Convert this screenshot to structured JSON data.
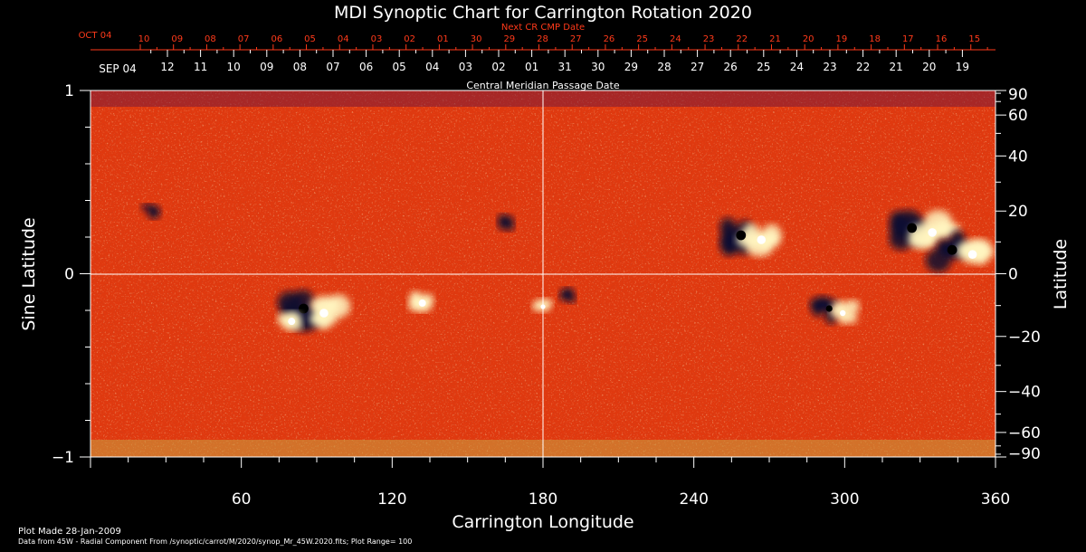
{
  "colors": {
    "background": "#000000",
    "text": "#ffffff",
    "next_cr_axis": "#ff3a1a",
    "map_base": "#e83c10",
    "positive_field": "#fff4c0",
    "negative_field": "#0a0830"
  },
  "chart_data": {
    "type": "heatmap",
    "title": "MDI Synoptic Chart for Carrington Rotation 2020",
    "xlabel": "Carrington Longitude",
    "ylabel_left": "Sine Latitude",
    "ylabel_right": "Latitude",
    "xlim": [
      0,
      360
    ],
    "ylim": [
      -1,
      1
    ],
    "x_ticks": [
      60,
      120,
      180,
      240,
      300,
      360
    ],
    "y_ticks_left": [
      -1,
      0,
      1
    ],
    "y_ticks_right": [
      90,
      60,
      40,
      20,
      0,
      -20,
      -40,
      -60,
      -90
    ],
    "y_ticks_right_labels": [
      "90",
      "60",
      "40",
      "20",
      "0",
      "−20",
      "−40",
      "−60",
      "−90"
    ],
    "center_crosshair": {
      "longitude": 180,
      "sine_latitude": 0
    },
    "top_axis_cmp": {
      "label": "Central Meridian Passage Date",
      "start_label": "SEP 04",
      "ticks": [
        "12",
        "11",
        "10",
        "09",
        "08",
        "07",
        "06",
        "05",
        "04",
        "03",
        "02",
        "01",
        "31",
        "30",
        "29",
        "28",
        "27",
        "26",
        "25",
        "24",
        "23",
        "22",
        "21",
        "20",
        "19"
      ]
    },
    "top_axis_next_cr": {
      "label": "Next CR CMP Date",
      "start_label": "OCT 04",
      "ticks": [
        "10",
        "09",
        "08",
        "07",
        "06",
        "05",
        "04",
        "03",
        "02",
        "01",
        "30",
        "29",
        "28",
        "27",
        "26",
        "25",
        "24",
        "23",
        "22",
        "21",
        "20",
        "19",
        "18",
        "17",
        "16",
        "15"
      ]
    },
    "active_regions": [
      {
        "lon": 88,
        "sinlat": -0.2,
        "polarity": "bipolar",
        "strength": "strong"
      },
      {
        "lon": 80,
        "sinlat": -0.26,
        "polarity": "positive",
        "strength": "moderate"
      },
      {
        "lon": 132,
        "sinlat": -0.16,
        "polarity": "positive",
        "strength": "moderate"
      },
      {
        "lon": 180,
        "sinlat": -0.18,
        "polarity": "positive",
        "strength": "weak"
      },
      {
        "lon": 190,
        "sinlat": -0.12,
        "polarity": "negative",
        "strength": "weak"
      },
      {
        "lon": 262,
        "sinlat": 0.2,
        "polarity": "bipolar",
        "strength": "strong"
      },
      {
        "lon": 296,
        "sinlat": -0.2,
        "polarity": "bipolar",
        "strength": "moderate"
      },
      {
        "lon": 330,
        "sinlat": 0.24,
        "polarity": "bipolar",
        "strength": "strong"
      },
      {
        "lon": 346,
        "sinlat": 0.12,
        "polarity": "bipolar",
        "strength": "strong"
      },
      {
        "lon": 24,
        "sinlat": 0.34,
        "polarity": "negative",
        "strength": "weak"
      },
      {
        "lon": 165,
        "sinlat": 0.28,
        "polarity": "negative",
        "strength": "weak"
      }
    ],
    "footer": {
      "plot_made": "Plot Made 28-Jan-2009",
      "data_source": "Data from 45W - Radial Component From /synoptic/carrot/M/2020/synop_Mr_45W.2020.fits; Plot Range=  100"
    }
  }
}
